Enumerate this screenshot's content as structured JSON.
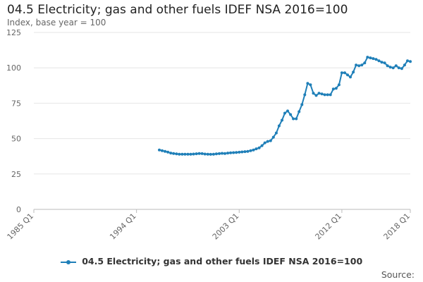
{
  "chart_data": {
    "type": "line",
    "title": "04.5 Electricity; gas and other fuels IDEF NSA 2016=100",
    "ylabel": "Index, base year = 100",
    "xlabel": "",
    "x_tick_labels": [
      "1985 Q1",
      "1994 Q1",
      "2003 Q1",
      "2012 Q1",
      "2018 Q1"
    ],
    "x_tick_values": [
      1985.0,
      1994.0,
      2003.0,
      2012.0,
      2018.0
    ],
    "xlim": [
      1985.0,
      2018.0
    ],
    "y_ticks": [
      0,
      25,
      50,
      75,
      100,
      125
    ],
    "ylim": [
      0,
      125
    ],
    "grid": "horizontal",
    "legend_position": "bottom",
    "series": [
      {
        "name": "04.5 Electricity; gas and other fuels IDEF NSA 2016=100",
        "color": "#1f7fb8",
        "x": [
          1996.0,
          1996.25,
          1996.5,
          1996.75,
          1997.0,
          1997.25,
          1997.5,
          1997.75,
          1998.0,
          1998.25,
          1998.5,
          1998.75,
          1999.0,
          1999.25,
          1999.5,
          1999.75,
          2000.0,
          2000.25,
          2000.5,
          2000.75,
          2001.0,
          2001.25,
          2001.5,
          2001.75,
          2002.0,
          2002.25,
          2002.5,
          2002.75,
          2003.0,
          2003.25,
          2003.5,
          2003.75,
          2004.0,
          2004.25,
          2004.5,
          2004.75,
          2005.0,
          2005.25,
          2005.5,
          2005.75,
          2006.0,
          2006.25,
          2006.5,
          2006.75,
          2007.0,
          2007.25,
          2007.5,
          2007.75,
          2008.0,
          2008.25,
          2008.5,
          2008.75,
          2009.0,
          2009.25,
          2009.5,
          2009.75,
          2010.0,
          2010.25,
          2010.5,
          2010.75,
          2011.0,
          2011.25,
          2011.5,
          2011.75,
          2012.0,
          2012.25,
          2012.5,
          2012.75,
          2013.0,
          2013.25,
          2013.5,
          2013.75,
          2014.0,
          2014.25,
          2014.5,
          2014.75,
          2015.0,
          2015.25,
          2015.5,
          2015.75,
          2016.0,
          2016.25,
          2016.5,
          2016.75,
          2017.0,
          2017.25,
          2017.5,
          2017.75,
          2018.0
        ],
        "values": [
          42,
          41.5,
          41,
          40.5,
          39.8,
          39.5,
          39.2,
          39,
          39,
          39,
          39,
          39,
          39.1,
          39.3,
          39.5,
          39.4,
          39.1,
          39,
          38.9,
          39,
          39.2,
          39.4,
          39.6,
          39.5,
          39.8,
          40,
          40.1,
          40.2,
          40.4,
          40.6,
          40.8,
          41,
          41.5,
          42,
          42.8,
          43.5,
          45,
          47,
          48,
          48.5,
          51,
          54,
          59,
          63,
          68,
          69.5,
          67,
          64,
          64,
          69,
          74,
          81,
          89,
          88,
          82,
          80.5,
          82,
          81.5,
          81,
          81,
          81,
          85,
          85.5,
          88,
          96.5,
          96.5,
          95,
          93.5,
          97,
          102,
          101.5,
          102,
          103.5,
          107.5,
          107,
          106.5,
          106,
          105,
          104,
          103.5,
          101.5,
          100.5,
          100,
          101.5,
          100,
          99.5,
          102,
          105,
          104.5
        ]
      }
    ],
    "source_label": "Source:"
  }
}
